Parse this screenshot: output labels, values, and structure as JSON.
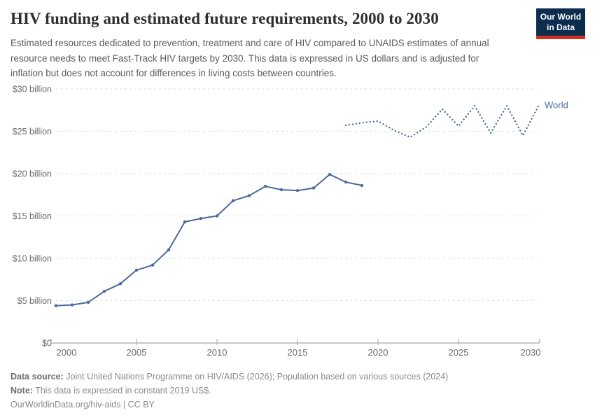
{
  "header": {
    "title": "HIV funding and estimated future requirements, 2000 to 2030",
    "subtitle": "Estimated resources dedicated to prevention, treatment and care of HIV compared to UNAIDS estimates of annual resource needs to meet Fast-Track HIV targets by 2030. This data is expressed in US dollars and is adjusted for inflation but does not account for differences in living costs between countries.",
    "logo": {
      "line1": "Our World",
      "line2": "in Data",
      "bg_color": "#0d2d4e",
      "accent_color": "#cc3221"
    }
  },
  "chart_data": {
    "type": "line",
    "title": "HIV funding and estimated future requirements, 2000 to 2030",
    "xlabel": "",
    "ylabel": "",
    "xlim": [
      2000,
      2030
    ],
    "ylim": [
      0,
      30
    ],
    "grid": "horizontal-dashed",
    "legend_position": "end-of-line-label",
    "entity_label": "World",
    "line_color": "#4C6A9C",
    "x_ticks": [
      2000,
      2005,
      2010,
      2015,
      2020,
      2025,
      2030
    ],
    "y_ticks": [
      {
        "value": 0,
        "label": "$0"
      },
      {
        "value": 5,
        "label": "$5 billion"
      },
      {
        "value": 10,
        "label": "$10 billion"
      },
      {
        "value": 15,
        "label": "$15 billion"
      },
      {
        "value": 20,
        "label": "$20 billion"
      },
      {
        "value": 25,
        "label": "$25 billion"
      },
      {
        "value": 30,
        "label": "$30 billion"
      }
    ],
    "unit": "billion US$ (constant 2019 US$)",
    "series": [
      {
        "name": "World — HIV funding (actual)",
        "style": "solid",
        "markers": true,
        "x": [
          2000,
          2001,
          2002,
          2003,
          2004,
          2005,
          2006,
          2007,
          2008,
          2009,
          2010,
          2011,
          2012,
          2013,
          2014,
          2015,
          2016,
          2017,
          2018,
          2019
        ],
        "values": [
          4.4,
          4.5,
          4.8,
          6.1,
          7.0,
          8.6,
          9.2,
          11.0,
          14.3,
          14.7,
          15.0,
          16.8,
          17.4,
          18.5,
          18.1,
          18.0,
          18.3,
          19.9,
          19.0,
          18.6
        ]
      },
      {
        "name": "World — estimated future resource requirements",
        "style": "dotted",
        "markers": false,
        "x": [
          2018,
          2019,
          2020,
          2021,
          2022,
          2023,
          2024,
          2025,
          2026,
          2027,
          2028,
          2029,
          2030
        ],
        "values": [
          25.7,
          26.0,
          26.2,
          25.1,
          24.3,
          25.5,
          27.6,
          25.6,
          28.0,
          24.8,
          28.0,
          24.5,
          28.1
        ]
      }
    ]
  },
  "footer": {
    "datasource_label": "Data source:",
    "datasource_text": " Joint United Nations Programme on HIV/AIDS (2026); Population based on various sources (2024)",
    "note_label": "Note:",
    "note_text": " This data is expressed in constant 2019 US$.",
    "link_text": "OurWorldinData.org/hiv-aids",
    "license_suffix": " | CC BY"
  }
}
